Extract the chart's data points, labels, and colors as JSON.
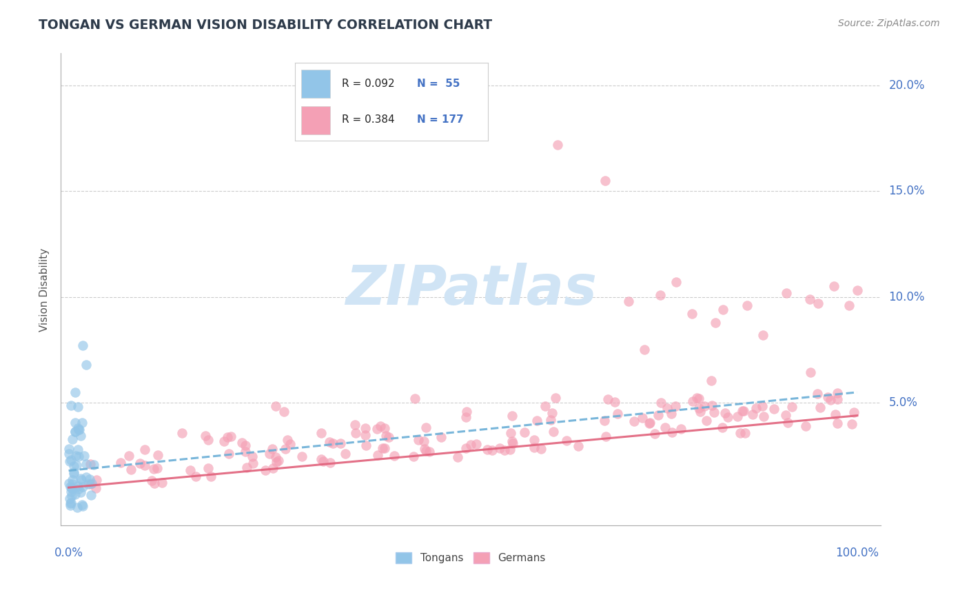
{
  "title": "TONGAN VS GERMAN VISION DISABILITY CORRELATION CHART",
  "source": "Source: ZipAtlas.com",
  "ylabel": "Vision Disability",
  "blue_color": "#92C5E8",
  "pink_color": "#F4A0B5",
  "trendline_blue": "#6AAED6",
  "trendline_pink": "#E0607A",
  "title_color": "#2D3A4A",
  "axis_label_color": "#4472C4",
  "watermark_color": "#D0E4F5",
  "grid_color": "#CCCCCC",
  "legend_r1": "R = 0.092",
  "legend_n1": "N =  55",
  "legend_r2": "R = 0.384",
  "legend_n2": "N = 177"
}
